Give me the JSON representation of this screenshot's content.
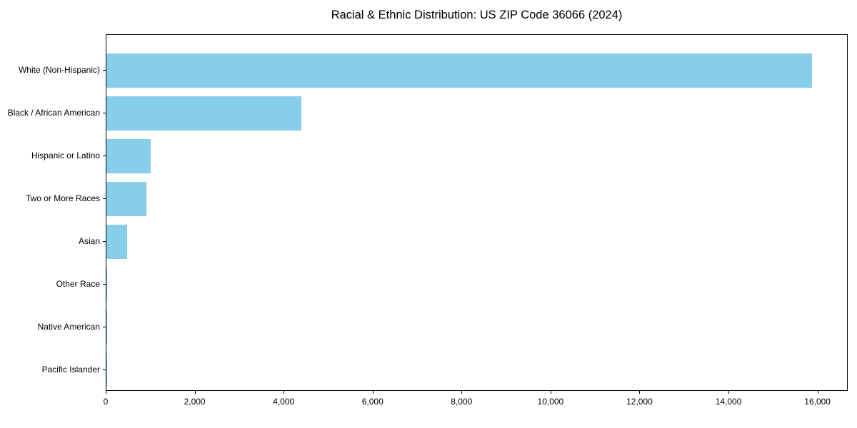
{
  "figure": {
    "title": "Racial & Ethnic Distribution: US ZIP Code 36066 (2024)"
  },
  "chart_data": {
    "type": "bar",
    "orientation": "horizontal",
    "title": "Racial & Ethnic Distribution: US ZIP Code 36066 (2024)",
    "categories": [
      "White (Non-Hispanic)",
      "Black / African American",
      "Hispanic or Latino",
      "Two or More Races",
      "Asian",
      "Other Race",
      "Native American",
      "Pacific Islander"
    ],
    "values": [
      15860,
      4380,
      1000,
      900,
      460,
      20,
      15,
      5
    ],
    "xlabel": "",
    "ylabel": "",
    "xlim": [
      0,
      16680
    ],
    "xticks": [
      0,
      2000,
      4000,
      6000,
      8000,
      10000,
      12000,
      14000,
      16000
    ],
    "xtick_labels": [
      "0",
      "2,000",
      "4,000",
      "6,000",
      "8,000",
      "10,000",
      "12,000",
      "14,000",
      "16,000"
    ],
    "bar_color": "#87ceeb",
    "axis_color": "#000000",
    "background_color": "#ffffff",
    "grid": false,
    "legend": null
  }
}
